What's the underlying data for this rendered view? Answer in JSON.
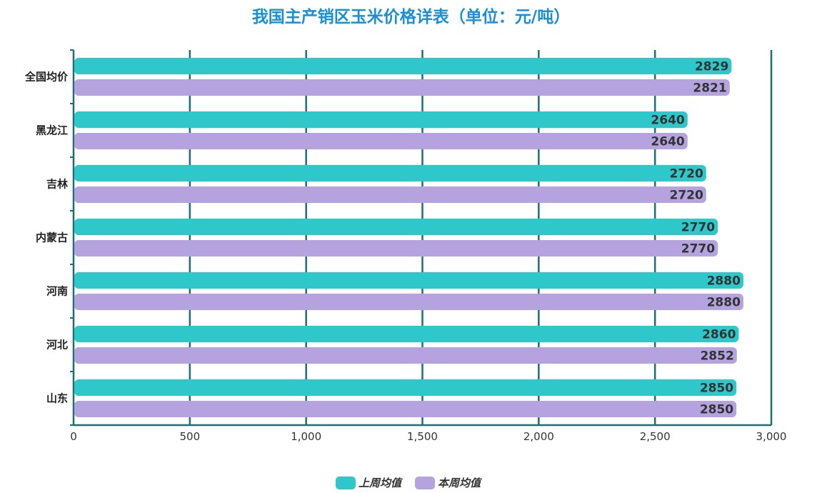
{
  "chart_data": {
    "type": "bar",
    "orientation": "horizontal",
    "title": "我国主产销区玉米价格详表（单位：元/吨）",
    "categories": [
      "全国均价",
      "黑龙江",
      "吉林",
      "内蒙古",
      "河南",
      "河北",
      "山东"
    ],
    "series": [
      {
        "name": "上周均值",
        "color": "#2ec8ca",
        "values": [
          2829,
          2640,
          2720,
          2770,
          2880,
          2860,
          2850
        ]
      },
      {
        "name": "本周均值",
        "color": "#b5a3e0",
        "values": [
          2821,
          2640,
          2720,
          2770,
          2880,
          2852,
          2850
        ]
      }
    ],
    "xlim": [
      0,
      3000
    ],
    "xticks": [
      "0",
      "500",
      "1,000",
      "1,500",
      "2,000",
      "2,500",
      "3,000"
    ],
    "grid": true,
    "legend_position": "bottom-center",
    "axis_color": "#1f6e73"
  }
}
